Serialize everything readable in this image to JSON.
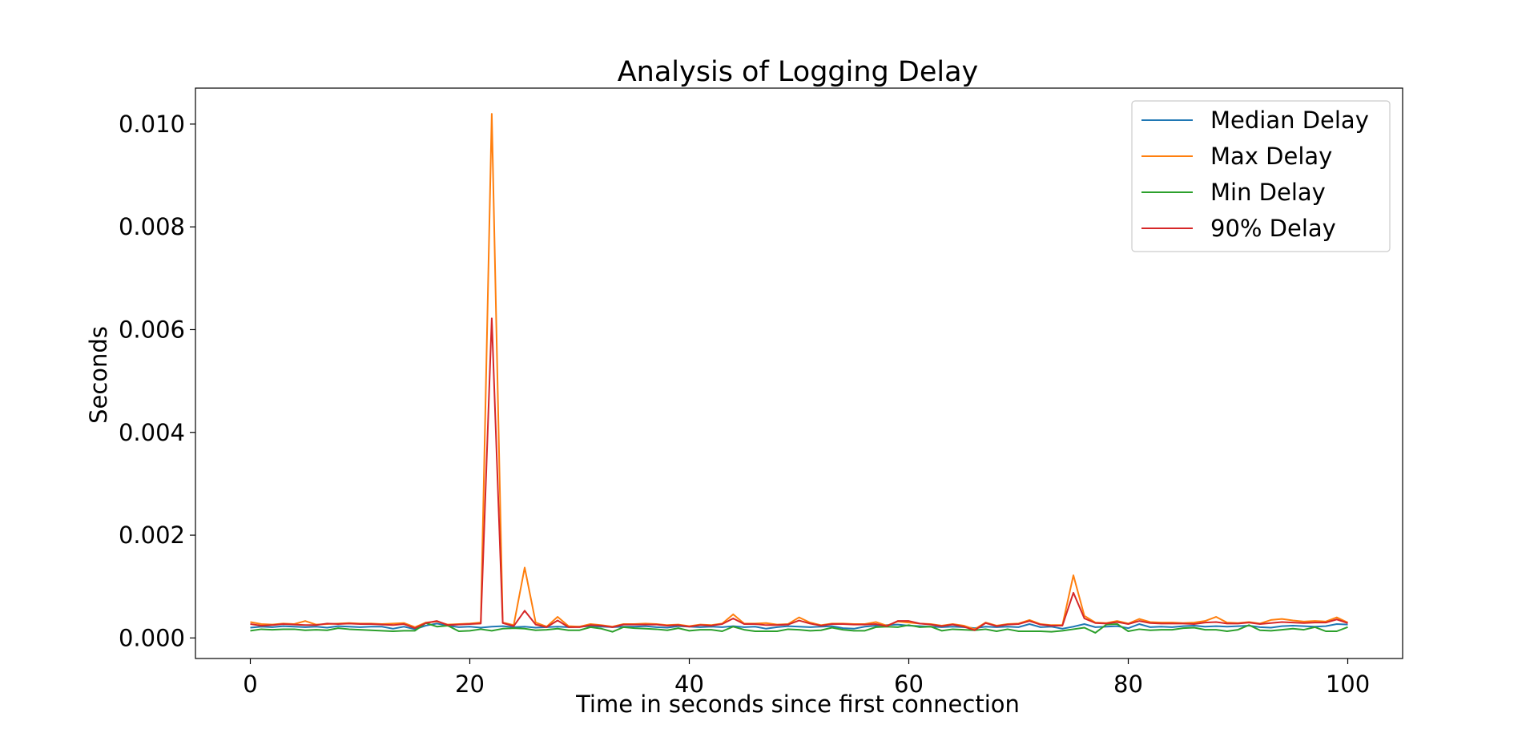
{
  "chart_data": {
    "type": "line",
    "title": "Analysis of Logging Delay",
    "xlabel": "Time in seconds since first connection",
    "ylabel": "Seconds",
    "xlim": [
      -5,
      105
    ],
    "ylim": [
      -0.0004,
      0.0107
    ],
    "x_ticks": [
      0,
      20,
      40,
      60,
      80,
      100
    ],
    "x_tick_labels": [
      "0",
      "20",
      "40",
      "60",
      "80",
      "100"
    ],
    "y_ticks": [
      0.0,
      0.002,
      0.004,
      0.006,
      0.008,
      0.01
    ],
    "y_tick_labels": [
      "0.000",
      "0.002",
      "0.004",
      "0.006",
      "0.008",
      "0.010"
    ],
    "grid": false,
    "legend_position": "top-right",
    "x": [
      0,
      1,
      2,
      3,
      4,
      5,
      6,
      7,
      8,
      9,
      10,
      11,
      12,
      13,
      14,
      15,
      16,
      17,
      18,
      19,
      20,
      21,
      22,
      23,
      24,
      25,
      26,
      27,
      28,
      29,
      30,
      31,
      32,
      33,
      34,
      35,
      36,
      37,
      38,
      39,
      40,
      41,
      42,
      43,
      44,
      45,
      46,
      47,
      48,
      49,
      50,
      51,
      52,
      53,
      54,
      55,
      56,
      57,
      58,
      59,
      60,
      61,
      62,
      63,
      64,
      65,
      66,
      67,
      68,
      69,
      70,
      71,
      72,
      73,
      74,
      75,
      76,
      77,
      78,
      79,
      80,
      81,
      82,
      83,
      84,
      85,
      86,
      87,
      88,
      89,
      90,
      91,
      92,
      93,
      94,
      95,
      96,
      97,
      98,
      99,
      100
    ],
    "series": [
      {
        "name": "Median Delay",
        "color": "#1f77b4",
        "values": [
          0.0002,
          0.00022,
          0.00021,
          0.00023,
          0.00022,
          0.00021,
          0.00022,
          0.0002,
          0.00023,
          0.00022,
          0.00021,
          0.00022,
          0.00022,
          0.00018,
          0.00022,
          0.00017,
          0.00024,
          0.00028,
          0.00024,
          0.00021,
          0.00022,
          0.0002,
          0.00022,
          0.00023,
          0.00021,
          0.00022,
          0.0002,
          0.00021,
          0.00022,
          0.00021,
          0.00022,
          0.00023,
          0.00022,
          0.00021,
          0.00022,
          0.00022,
          0.00023,
          0.00021,
          0.0002,
          0.00023,
          0.00022,
          0.00021,
          0.00022,
          0.00021,
          0.00023,
          0.00021,
          0.00022,
          0.00018,
          0.00021,
          0.00023,
          0.00022,
          0.00021,
          0.00022,
          0.00023,
          0.00019,
          0.00018,
          0.00022,
          0.00024,
          0.00025,
          0.00026,
          0.00024,
          0.00023,
          0.00022,
          0.00021,
          0.00022,
          0.00021,
          0.00019,
          0.00022,
          0.00021,
          0.00022,
          0.00021,
          0.00027,
          0.00021,
          0.00022,
          0.00018,
          0.00022,
          0.00027,
          0.00021,
          0.00022,
          0.00023,
          0.00019,
          0.00027,
          0.00021,
          0.00022,
          0.00021,
          0.00023,
          0.00024,
          0.00022,
          0.00023,
          0.00022,
          0.00023,
          0.00024,
          0.00021,
          0.0002,
          0.00023,
          0.00024,
          0.00023,
          0.00022,
          0.00023,
          0.00027,
          0.00026
        ]
      },
      {
        "name": "Max Delay",
        "color": "#ff7f0e",
        "values": [
          0.00031,
          0.00027,
          0.00026,
          0.00028,
          0.00027,
          0.00033,
          0.00026,
          0.00027,
          0.00028,
          0.00029,
          0.00028,
          0.00028,
          0.00027,
          0.00028,
          0.00029,
          0.00021,
          0.0003,
          0.00032,
          0.00026,
          0.00027,
          0.00028,
          0.0003,
          0.0102,
          0.0003,
          0.00025,
          0.00137,
          0.0003,
          0.00022,
          0.00041,
          0.00023,
          0.00022,
          0.00027,
          0.00025,
          0.00022,
          0.00027,
          0.00027,
          0.00028,
          0.00027,
          0.00025,
          0.00026,
          0.00023,
          0.00026,
          0.00025,
          0.00028,
          0.00046,
          0.00028,
          0.00028,
          0.00029,
          0.00026,
          0.00027,
          0.0004,
          0.0003,
          0.00025,
          0.00028,
          0.00028,
          0.00027,
          0.00027,
          0.00031,
          0.00024,
          0.00032,
          0.0003,
          0.00028,
          0.00027,
          0.00024,
          0.00027,
          0.00024,
          0.00017,
          0.0003,
          0.00024,
          0.00027,
          0.00028,
          0.00035,
          0.00027,
          0.00025,
          0.00025,
          0.00122,
          0.00043,
          0.0003,
          0.00029,
          0.00033,
          0.00028,
          0.00037,
          0.00031,
          0.0003,
          0.0003,
          0.00029,
          0.0003,
          0.00033,
          0.00041,
          0.0003,
          0.00029,
          0.00031,
          0.00028,
          0.00035,
          0.00037,
          0.00034,
          0.00032,
          0.00033,
          0.00032,
          0.0004,
          0.0003
        ]
      },
      {
        "name": "Min Delay",
        "color": "#2ca02c",
        "values": [
          0.00014,
          0.00017,
          0.00016,
          0.00017,
          0.00017,
          0.00015,
          0.00016,
          0.00015,
          0.00019,
          0.00017,
          0.00016,
          0.00015,
          0.00014,
          0.00013,
          0.00014,
          0.00014,
          0.00029,
          0.00022,
          0.00024,
          0.00013,
          0.00014,
          0.00017,
          0.00014,
          0.00018,
          0.00019,
          0.00018,
          0.00015,
          0.00016,
          0.00018,
          0.00015,
          0.00015,
          0.00021,
          0.00018,
          0.00012,
          0.00021,
          0.00019,
          0.00018,
          0.00017,
          0.00015,
          0.00019,
          0.00014,
          0.00016,
          0.00016,
          0.00013,
          0.00022,
          0.00016,
          0.00013,
          0.00013,
          0.00013,
          0.00017,
          0.00016,
          0.00014,
          0.00015,
          0.0002,
          0.00016,
          0.00014,
          0.00014,
          0.00021,
          0.00022,
          0.00021,
          0.00025,
          0.00021,
          0.00022,
          0.00014,
          0.00017,
          0.00016,
          0.00015,
          0.00017,
          0.00013,
          0.00017,
          0.00013,
          0.00013,
          0.00013,
          0.00012,
          0.00014,
          0.00017,
          0.0002,
          0.0001,
          0.00026,
          0.00027,
          0.00013,
          0.00017,
          0.00015,
          0.00016,
          0.00016,
          0.00019,
          0.0002,
          0.00016,
          0.00016,
          0.00013,
          0.00016,
          0.00025,
          0.00015,
          0.00014,
          0.00016,
          0.00018,
          0.00016,
          0.00021,
          0.00013,
          0.00013,
          0.00021
        ]
      },
      {
        "name": "90% Delay",
        "color": "#d62728",
        "values": [
          0.00027,
          0.00024,
          0.00025,
          0.00027,
          0.00026,
          0.00025,
          0.00025,
          0.00028,
          0.00027,
          0.00028,
          0.00027,
          0.00027,
          0.00026,
          0.00025,
          0.00027,
          0.00019,
          0.00029,
          0.00033,
          0.00025,
          0.00026,
          0.00027,
          0.00028,
          0.00622,
          0.00029,
          0.00023,
          0.00053,
          0.00026,
          0.00021,
          0.00034,
          0.00021,
          0.00021,
          0.00025,
          0.00024,
          0.00021,
          0.00026,
          0.00026,
          0.00026,
          0.00026,
          0.00024,
          0.00025,
          0.00022,
          0.00025,
          0.00024,
          0.00027,
          0.00038,
          0.00027,
          0.00027,
          0.00025,
          0.00025,
          0.00026,
          0.00034,
          0.00028,
          0.00024,
          0.00027,
          0.00027,
          0.00026,
          0.00026,
          0.00027,
          0.00023,
          0.00033,
          0.00033,
          0.00028,
          0.00026,
          0.00023,
          0.00026,
          0.00022,
          0.00015,
          0.00029,
          0.00023,
          0.00026,
          0.00027,
          0.00033,
          0.00026,
          0.00024,
          0.00024,
          0.00088,
          0.00038,
          0.00029,
          0.00028,
          0.00031,
          0.00027,
          0.00033,
          0.00029,
          0.00028,
          0.00028,
          0.00028,
          0.00027,
          0.0003,
          0.00031,
          0.00028,
          0.00028,
          0.0003,
          0.00027,
          0.00029,
          0.00031,
          0.0003,
          0.00029,
          0.0003,
          0.0003,
          0.00036,
          0.00029
        ]
      }
    ]
  }
}
